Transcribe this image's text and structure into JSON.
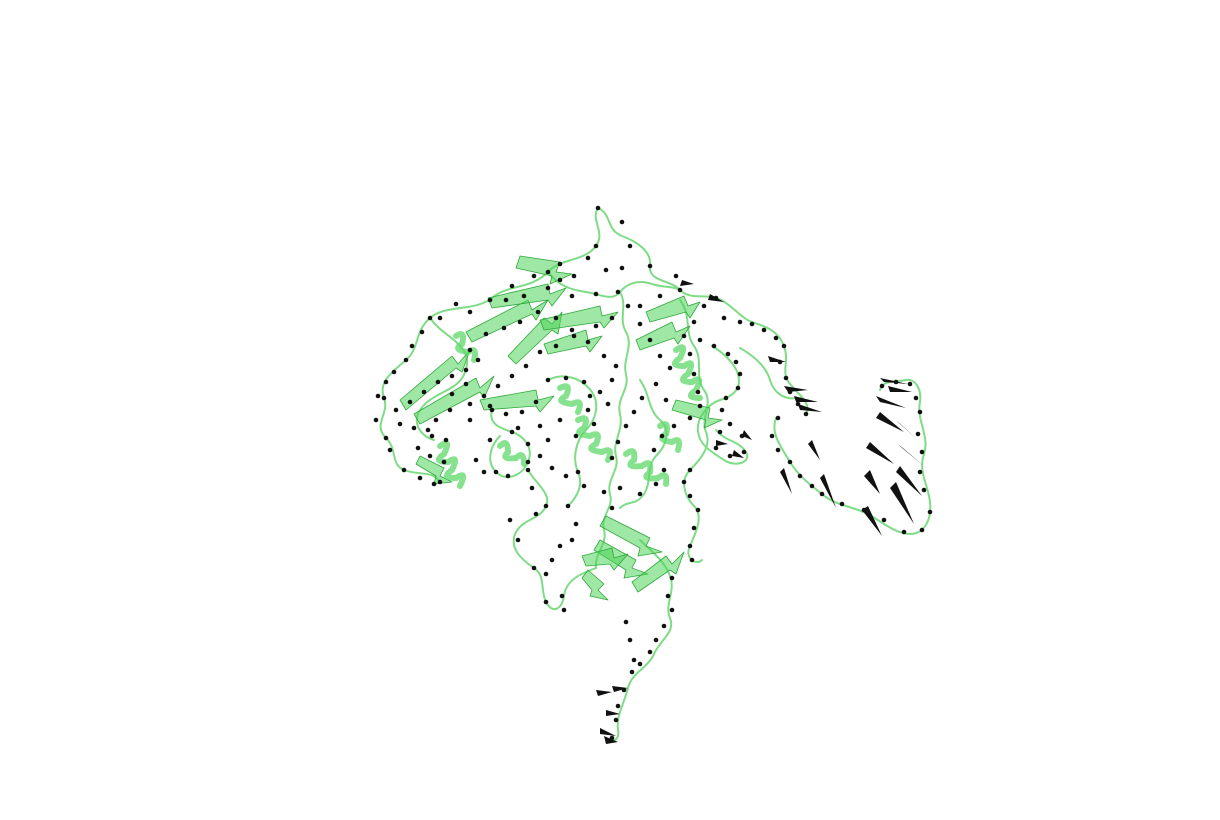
{
  "scene": {
    "background_color": "#ffffff",
    "subject": "protein-cartoon",
    "colors": {
      "backbone": "#7fdc86",
      "sheet_fill": "#4fd45a",
      "sheet_edge": "#2fa83a",
      "helix": "#5fd86a",
      "vector_cone": "#111111"
    }
  }
}
